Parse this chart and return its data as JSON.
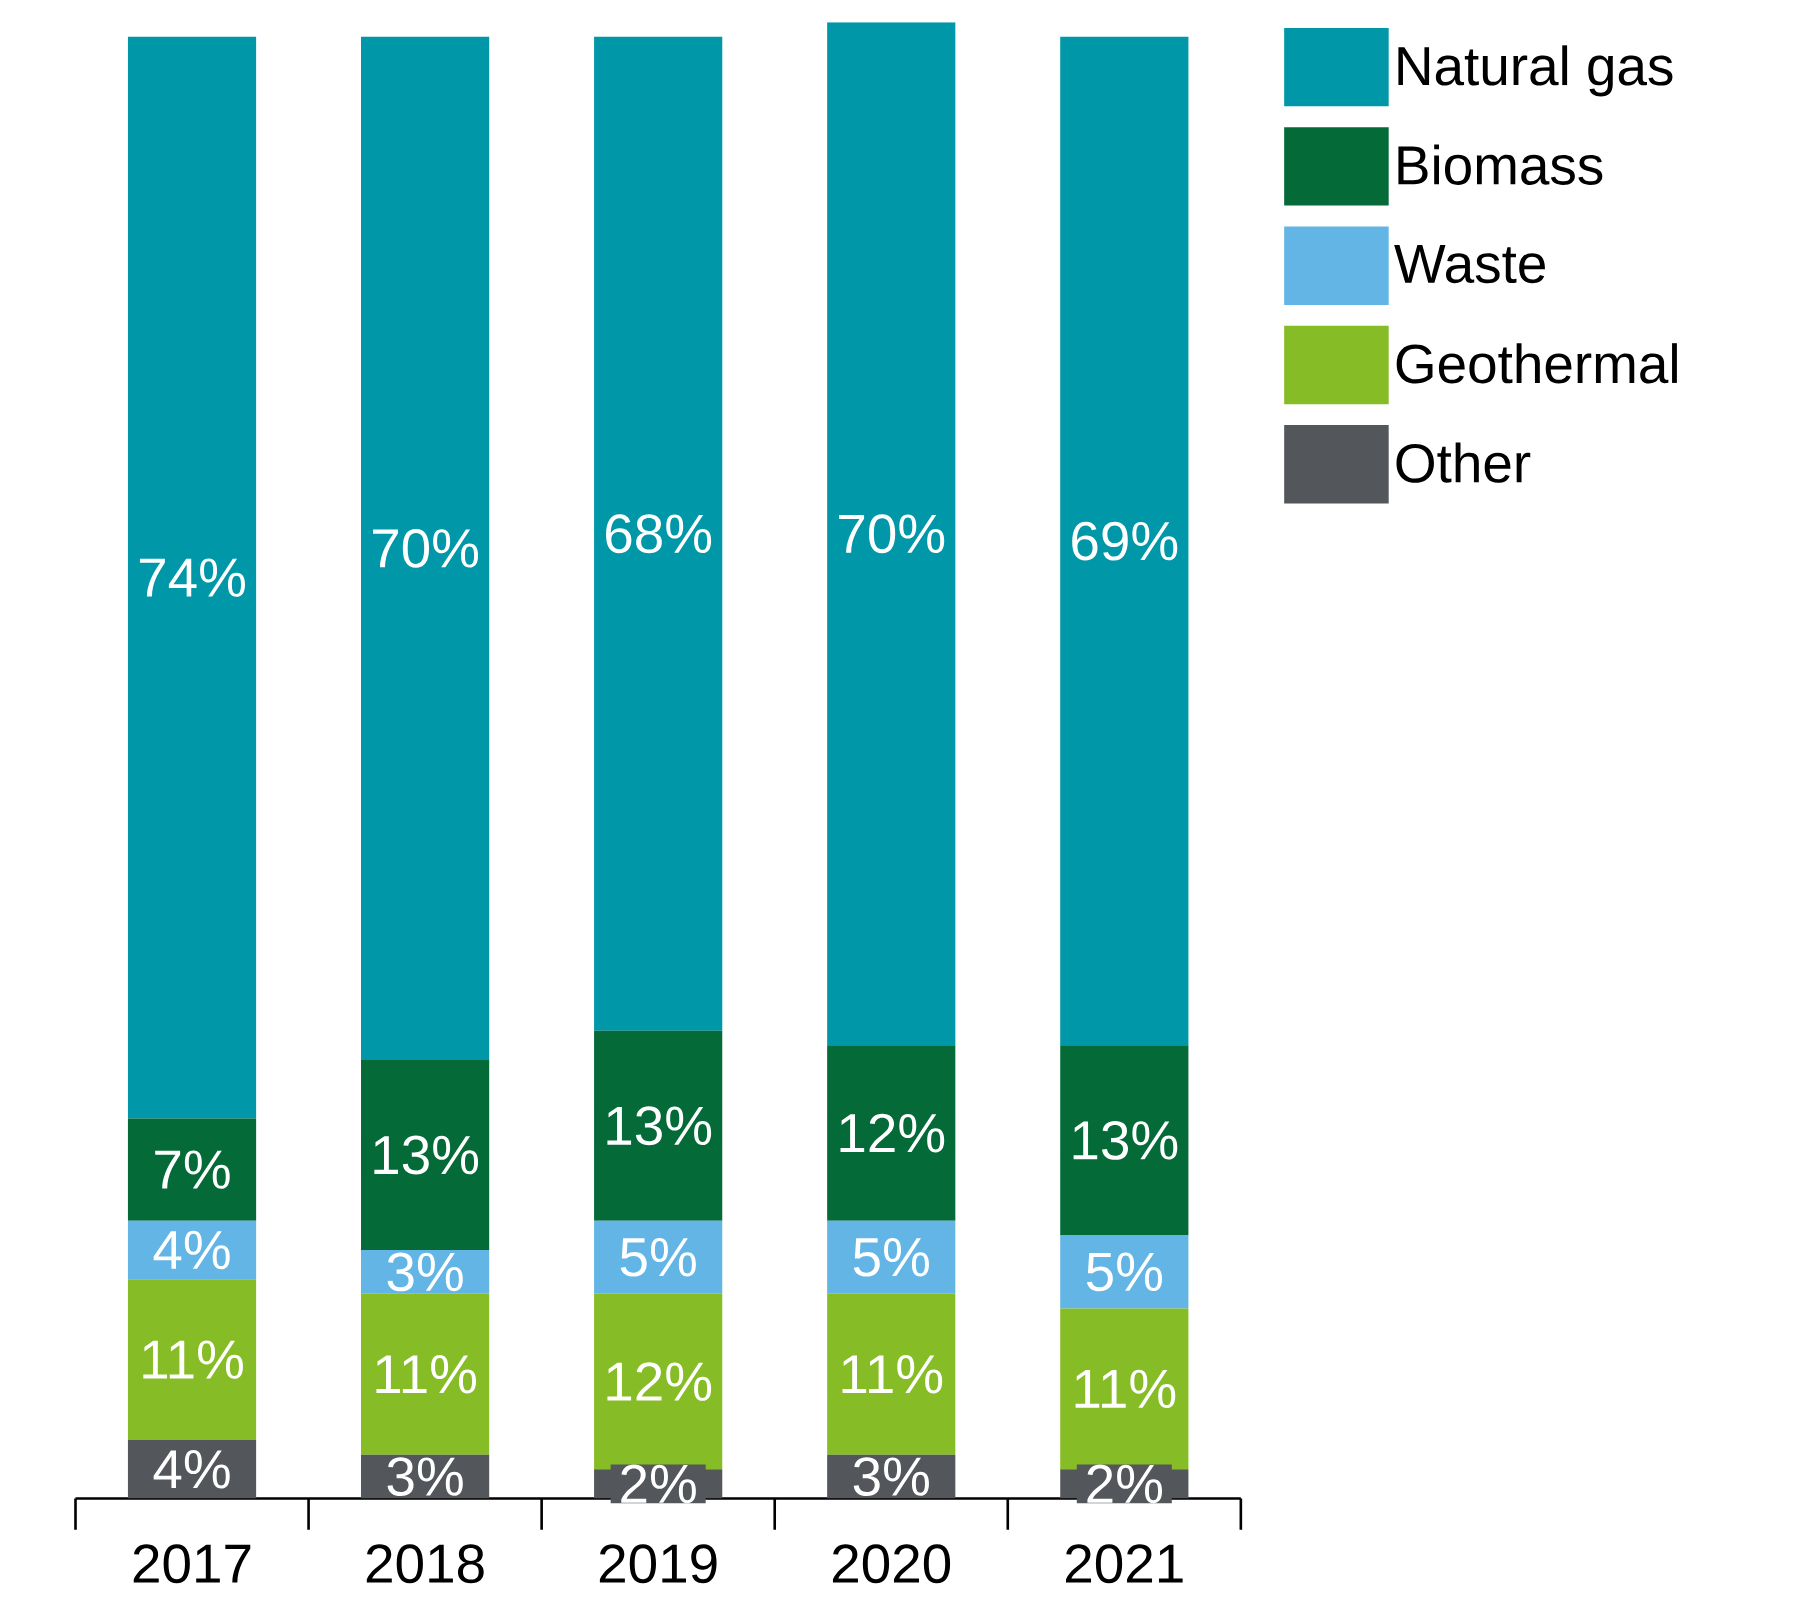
{
  "chart_data": {
    "type": "bar",
    "stacked": true,
    "legend": "right",
    "categories": [
      "2017",
      "2018",
      "2019",
      "2020",
      "2021"
    ],
    "series": [
      {
        "name": "Other",
        "color": "#53565a",
        "values": [
          4,
          3,
          2,
          3,
          2
        ],
        "value_labels": [
          "4%",
          "3%",
          "2%",
          "3%",
          "2%"
        ]
      },
      {
        "name": "Geothermal",
        "color": "#86bc25",
        "values": [
          11,
          11,
          12,
          11,
          11
        ],
        "value_labels": [
          "11%",
          "11%",
          "12%",
          "11%",
          "11%"
        ]
      },
      {
        "name": "Waste",
        "color": "#62b5e5",
        "values": [
          4,
          3,
          5,
          5,
          5
        ],
        "value_labels": [
          "4%",
          "3%",
          "5%",
          "5%",
          "5%"
        ]
      },
      {
        "name": "Biomass",
        "color": "#046a38",
        "values": [
          7,
          13,
          13,
          12,
          13
        ],
        "value_labels": [
          "7%",
          "13%",
          "13%",
          "12%",
          "13%"
        ]
      },
      {
        "name": "Natural gas",
        "color": "#0097a9",
        "values": [
          74,
          70,
          68,
          70,
          69
        ],
        "value_labels": [
          "74%",
          "70%",
          "68%",
          "70%",
          "69%"
        ]
      }
    ]
  }
}
